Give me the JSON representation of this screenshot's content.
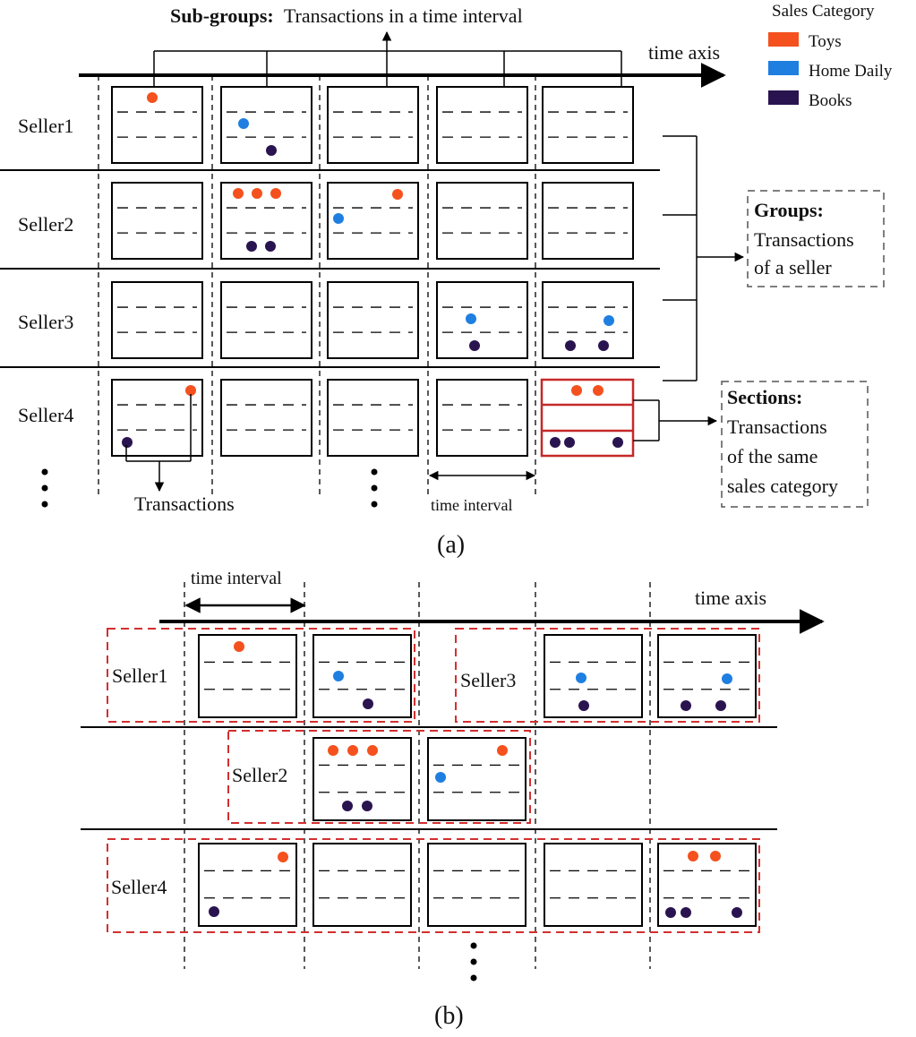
{
  "legend": {
    "title": "Sales Category",
    "items": [
      {
        "label": "Toys",
        "color": "#f4511e"
      },
      {
        "label": "Home Daily",
        "color": "#1e7fe0"
      },
      {
        "label": "Books",
        "color": "#2a1450"
      }
    ]
  },
  "panel_a": {
    "caption": "(a)",
    "subgroups_bold": "Sub-groups:",
    "subgroups_text": "Transactions in a time interval",
    "time_axis": "time axis",
    "sellers": [
      "Seller1",
      "Seller2",
      "Seller3",
      "Seller4"
    ],
    "groups_bold": "Groups:",
    "groups_lines": [
      "Transactions",
      "of a seller"
    ],
    "sections_bold": "Sections:",
    "sections_lines": [
      "Transactions",
      "of the same",
      "sales category"
    ],
    "transactions_label": "Transactions",
    "time_interval_label": "time interval"
  },
  "panel_b": {
    "caption": "(b)",
    "time_interval_label": "time interval",
    "time_axis": "time axis",
    "sellers": [
      "Seller1",
      "Seller3",
      "Seller2",
      "Seller4"
    ]
  }
}
